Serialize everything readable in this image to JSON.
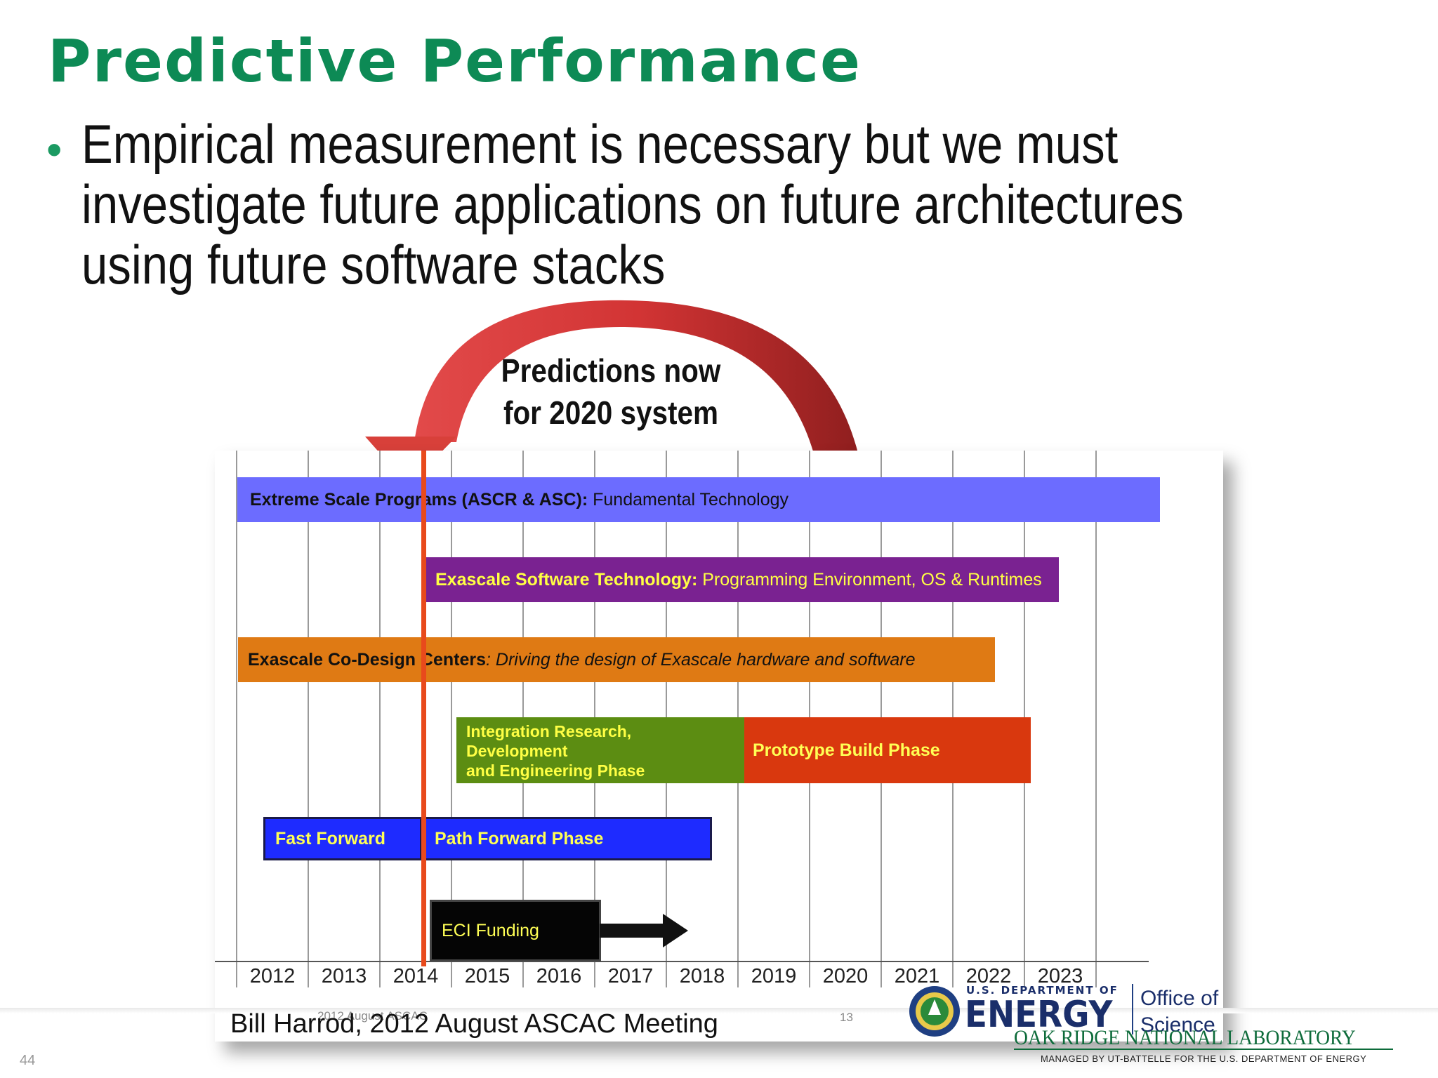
{
  "slide": {
    "title": "Predictive Performance",
    "bullet": "Empirical measurement is necessary but we must investigate future applications on future architectures using future software stacks",
    "slide_number": "44"
  },
  "figure": {
    "callout_line1": "Predictions now",
    "callout_line2": "for 2020 system",
    "years": [
      "2012",
      "2013",
      "2014",
      "2015",
      "2016",
      "2017",
      "2018",
      "2019",
      "2020",
      "2021",
      "2022",
      "2023"
    ],
    "bars": {
      "extreme": {
        "bold": "Extreme Scale Programs (ASCR & ASC):",
        "rest": " Fundamental Technology"
      },
      "software": {
        "bold": "Exascale Software Technology:",
        "rest": " Programming Environment, OS & Runtimes"
      },
      "codesign": {
        "bold": "Exascale Co-Design Centers",
        "rest": ": Driving the design of Exascale hardware and software"
      },
      "integration_line1": "Integration Research,",
      "integration_line2": "Development",
      "integration_line3": "and Engineering Phase",
      "prototype": "Prototype Build Phase",
      "fast_forward": "Fast Forward",
      "path_forward": "Path Forward Phase",
      "eci": "ECI Funding"
    },
    "caption": "Bill Harrod, 2012 August ASCAC Meeting",
    "faint_caption": "2012 August ASCAC",
    "faint_page": "13"
  },
  "logos": {
    "doe_top": "U.S. DEPARTMENT OF",
    "doe_main": "ENERGY",
    "office_line1": "Office of",
    "office_line2": "Science",
    "ornl_main": "OAK RIDGE NATIONAL LABORATORY",
    "ornl_sub": "MANAGED BY UT-BATTELLE FOR THE U.S. DEPARTMENT OF ENERGY"
  }
}
